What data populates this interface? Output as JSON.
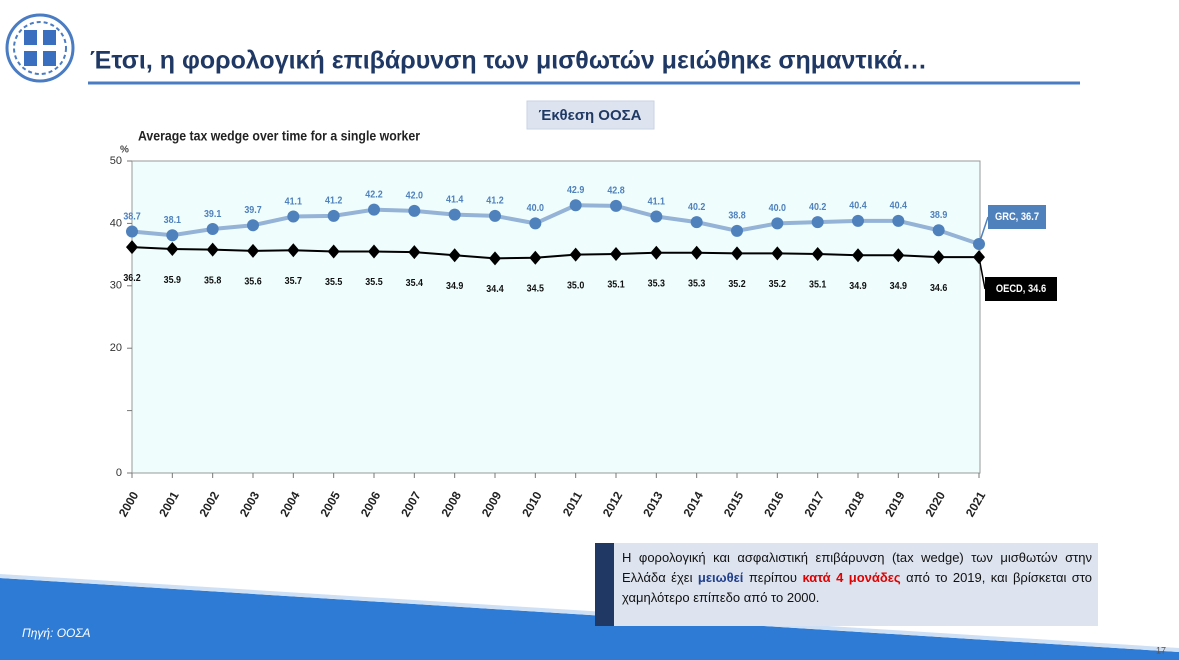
{
  "header": {
    "title": "Έτσι, η φορολογική επιβάρυνση των μισθωτών μειώθηκε σημαντικά…"
  },
  "badge": "Έκθεση ΟΟΣΑ",
  "chart_data": {
    "type": "line",
    "title": "Average tax wedge over time for a single worker",
    "y_label": "%",
    "categories": [
      "2000",
      "2001",
      "2002",
      "2003",
      "2004",
      "2005",
      "2006",
      "2007",
      "2008",
      "2009",
      "2010",
      "2011",
      "2012",
      "2013",
      "2014",
      "2015",
      "2016",
      "2017",
      "2018",
      "2019",
      "2020",
      "2021"
    ],
    "series": [
      {
        "label": "GRC, 36.7",
        "color": "#4f81bd",
        "line_color": "#95b3d7",
        "marker": "circle",
        "values": [
          38.7,
          38.1,
          39.1,
          39.7,
          41.1,
          41.2,
          42.2,
          42.0,
          41.4,
          41.2,
          40.0,
          42.9,
          42.8,
          41.1,
          40.2,
          38.8,
          40.0,
          40.2,
          40.4,
          40.4,
          38.9,
          36.7
        ],
        "value_labels": [
          "38.7",
          "38.1",
          "39.1",
          "39.7",
          "41.1",
          "41.2",
          "42.2",
          "42.0",
          "41.4",
          "41.2",
          "40.0",
          "42.9",
          "42.8",
          "41.1",
          "40.2",
          "38.8",
          "40.0",
          "40.2",
          "40.4",
          "40.4",
          "38.9",
          null
        ]
      },
      {
        "label": "OECD, 34.6",
        "color": "#000000",
        "line_color": "#000000",
        "marker": "diamond",
        "values": [
          36.2,
          35.9,
          35.8,
          35.6,
          35.7,
          35.5,
          35.5,
          35.4,
          34.9,
          34.4,
          34.5,
          35.0,
          35.1,
          35.3,
          35.3,
          35.2,
          35.2,
          35.1,
          34.9,
          34.9,
          34.6,
          34.6
        ],
        "value_labels": [
          "36.2",
          "35.9",
          "35.8",
          "35.6",
          "35.7",
          "35.5",
          "35.5",
          "35.4",
          "34.9",
          "34.4",
          "34.5",
          "35.0",
          "35.1",
          "35.3",
          "35.3",
          "35.2",
          "35.2",
          "35.1",
          "34.9",
          "34.9",
          "34.6",
          null
        ]
      }
    ],
    "ylim": [
      0,
      50
    ],
    "yticks": [
      0,
      {
        "value": 10,
        "label": null
      },
      20,
      30,
      40,
      50
    ]
  },
  "note": {
    "parts": [
      {
        "text": "Η φορολογική και ασφαλιστική επιβάρυνση (tax wedge) των μισθωτών στην Ελλάδα έχει ",
        "style": "plain"
      },
      {
        "text": "μειωθεί",
        "style": "blue"
      },
      {
        "text": " περίπου ",
        "style": "plain"
      },
      {
        "text": "κατά 4 μονάδες",
        "style": "red"
      },
      {
        "text": " από το 2019, και βρίσκεται στο χαμηλότερο επίπεδο από το 2000.",
        "style": "plain"
      }
    ]
  },
  "source": "Πηγή: ΟΟΣΑ",
  "page_number": "17"
}
